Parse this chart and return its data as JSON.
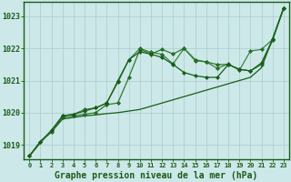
{
  "background_color": "#cce8e8",
  "plot_bg": "#cce8e8",
  "grid_color": "#aacccc",
  "line_color_dark": "#1a5c1a",
  "line_color_mid": "#2d7a2d",
  "xlabel": "Graphe pression niveau de la mer (hPa)",
  "xlabel_fontsize": 7,
  "ytick_fontsize": 6,
  "xtick_fontsize": 5,
  "yticks": [
    1019,
    1020,
    1021,
    1022,
    1023
  ],
  "xticks": [
    0,
    1,
    2,
    3,
    4,
    5,
    6,
    7,
    8,
    9,
    10,
    11,
    12,
    13,
    14,
    15,
    16,
    17,
    18,
    19,
    20,
    21,
    22,
    23
  ],
  "ylim": [
    1018.55,
    1023.45
  ],
  "xlim": [
    -0.5,
    23.5
  ],
  "series1_x": [
    0,
    1,
    2,
    3,
    4,
    5,
    6,
    7,
    8,
    9,
    10,
    11,
    12,
    13,
    14,
    15,
    16,
    17,
    18,
    19,
    20,
    21,
    22,
    23
  ],
  "series1_y": [
    1018.65,
    1019.1,
    1019.4,
    1019.8,
    1019.85,
    1019.9,
    1019.93,
    1019.97,
    1020.0,
    1020.05,
    1020.1,
    1020.2,
    1020.3,
    1020.4,
    1020.5,
    1020.6,
    1020.7,
    1020.8,
    1020.9,
    1021.0,
    1021.1,
    1021.4,
    1022.3,
    1023.25
  ],
  "series2_x": [
    0,
    1,
    2,
    3,
    4,
    5,
    6,
    7,
    8,
    9,
    10,
    11,
    12,
    13,
    14,
    15,
    16,
    17,
    18,
    19,
    20,
    21,
    22,
    23
  ],
  "series2_y": [
    1018.65,
    1019.1,
    1019.4,
    1019.85,
    1019.9,
    1019.95,
    1020.0,
    1020.25,
    1020.3,
    1021.1,
    1021.97,
    1021.83,
    1021.97,
    1021.83,
    1022.0,
    1021.65,
    1021.58,
    1021.5,
    1021.5,
    1021.35,
    1021.3,
    1021.5,
    1022.25,
    1023.25
  ],
  "series3_x": [
    0,
    1,
    2,
    3,
    4,
    5,
    6,
    7,
    8,
    9,
    10,
    11,
    12,
    13,
    14,
    15,
    16,
    17,
    18,
    19,
    20,
    21,
    22,
    23
  ],
  "series3_y": [
    1018.65,
    1019.1,
    1019.45,
    1019.9,
    1019.95,
    1020.05,
    1020.15,
    1020.3,
    1020.95,
    1021.65,
    1021.9,
    1021.82,
    1021.72,
    1021.5,
    1021.25,
    1021.15,
    1021.1,
    1021.1,
    1021.5,
    1021.35,
    1021.3,
    1021.55,
    1022.28,
    1023.25
  ],
  "series4_x": [
    0,
    2,
    3,
    4,
    5,
    6,
    7,
    8,
    9,
    10,
    11,
    12,
    13,
    14,
    15,
    16,
    17,
    18,
    19,
    20,
    21,
    22,
    23
  ],
  "series4_y": [
    1018.65,
    1019.45,
    1019.9,
    1019.95,
    1020.1,
    1020.15,
    1020.3,
    1021.0,
    1021.65,
    1022.0,
    1021.88,
    1021.82,
    1021.52,
    1022.0,
    1021.62,
    1021.58,
    1021.38,
    1021.52,
    1021.32,
    1021.92,
    1021.97,
    1022.28,
    1023.25
  ]
}
